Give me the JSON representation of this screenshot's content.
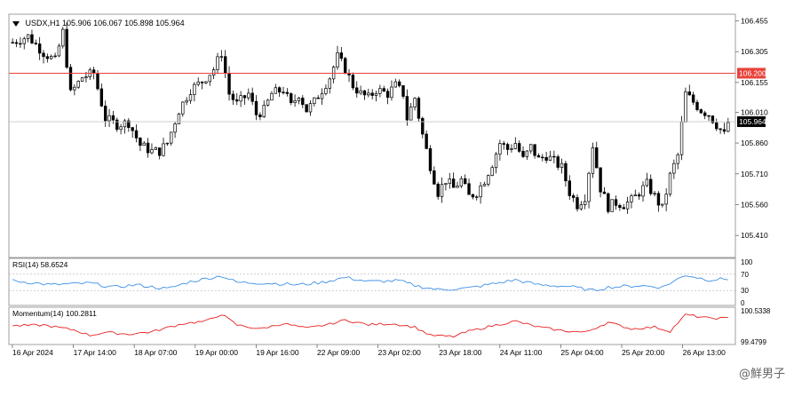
{
  "header": {
    "symbol": "USDX,H1",
    "ohlc": "105.906 106.067 105.898 105.964"
  },
  "price_axis": {
    "ticks": [
      "106.455",
      "106.305",
      "106.155",
      "106.010",
      "105.860",
      "105.710",
      "105.560",
      "105.410"
    ],
    "level_line_label": "106.200",
    "current_price_label": "105.964"
  },
  "rsi": {
    "label": "RSI(14) 58.6524",
    "ticks": [
      "100",
      "70",
      "30",
      "0"
    ]
  },
  "momentum": {
    "label": "Momentum(14) 100.2811",
    "ticks": [
      "100.5338",
      "99.4799"
    ]
  },
  "time_axis": {
    "labels": [
      "16 Apr 2024",
      "17 Apr 14:00",
      "18 Apr 07:00",
      "19 Apr 00:00",
      "19 Apr 16:00",
      "22 Apr 09:00",
      "23 Apr 02:00",
      "23 Apr 18:00",
      "24 Apr 11:00",
      "25 Apr 04:00",
      "25 Apr 20:00",
      "26 Apr 13:00"
    ]
  },
  "watermark": "@鮮男子",
  "colors": {
    "bull_candle": "#ffffff",
    "bear_candle": "#000000",
    "level_line": "#e8423a",
    "level_label_bg": "#e8423a",
    "current_label_bg": "#000000",
    "rsi_line": "#3d8fe8",
    "momentum_line": "#e82020"
  },
  "chart_data": [
    {
      "type": "candlestick",
      "title": "USDX,H1",
      "y_range": [
        105.32,
        106.47
      ],
      "horizontal_level": 106.2,
      "current_price": 105.964,
      "close_keypoints": [
        [
          0,
          106.35
        ],
        [
          4,
          106.38
        ],
        [
          8,
          106.3
        ],
        [
          11,
          106.26
        ],
        [
          13,
          106.4
        ],
        [
          15,
          106.1
        ],
        [
          18,
          106.18
        ],
        [
          21,
          106.2
        ],
        [
          24,
          105.98
        ],
        [
          27,
          105.95
        ],
        [
          30,
          105.96
        ],
        [
          33,
          105.85
        ],
        [
          36,
          105.82
        ],
        [
          38,
          105.82
        ],
        [
          40,
          105.86
        ],
        [
          43,
          106.02
        ],
        [
          46,
          106.12
        ],
        [
          49,
          106.16
        ],
        [
          52,
          106.22
        ],
        [
          54,
          106.3
        ],
        [
          56,
          106.1
        ],
        [
          58,
          106.05
        ],
        [
          61,
          106.1
        ],
        [
          63,
          106.0
        ],
        [
          65,
          106.02
        ],
        [
          67,
          106.1
        ],
        [
          70,
          106.12
        ],
        [
          72,
          106.04
        ],
        [
          74,
          106.1
        ],
        [
          76,
          106.02
        ],
        [
          78,
          106.06
        ],
        [
          80,
          106.12
        ],
        [
          82,
          106.18
        ],
        [
          84,
          106.28
        ],
        [
          86,
          106.22
        ],
        [
          88,
          106.14
        ],
        [
          90,
          106.1
        ],
        [
          92,
          106.08
        ],
        [
          94,
          106.12
        ],
        [
          97,
          106.1
        ],
        [
          99,
          106.14
        ],
        [
          101,
          106.1
        ],
        [
          102,
          105.98
        ],
        [
          104,
          106.08
        ],
        [
          106,
          105.9
        ],
        [
          108,
          105.75
        ],
        [
          110,
          105.62
        ],
        [
          112,
          105.68
        ],
        [
          114,
          105.64
        ],
        [
          116,
          105.68
        ],
        [
          118,
          105.6
        ],
        [
          120,
          105.62
        ],
        [
          122,
          105.68
        ],
        [
          124,
          105.76
        ],
        [
          126,
          105.86
        ],
        [
          128,
          105.83
        ],
        [
          130,
          105.86
        ],
        [
          132,
          105.78
        ],
        [
          134,
          105.84
        ],
        [
          136,
          105.78
        ],
        [
          138,
          105.8
        ],
        [
          140,
          105.77
        ],
        [
          142,
          105.74
        ],
        [
          144,
          105.62
        ],
        [
          146,
          105.56
        ],
        [
          148,
          105.6
        ],
        [
          150,
          105.85
        ],
        [
          152,
          105.64
        ],
        [
          154,
          105.55
        ],
        [
          156,
          105.57
        ],
        [
          158,
          105.56
        ],
        [
          160,
          105.58
        ],
        [
          162,
          105.62
        ],
        [
          164,
          105.66
        ],
        [
          166,
          105.6
        ],
        [
          168,
          105.54
        ],
        [
          170,
          105.7
        ],
        [
          172,
          105.8
        ],
        [
          174,
          106.1
        ],
        [
          176,
          106.06
        ],
        [
          178,
          106.02
        ],
        [
          180,
          106.0
        ],
        [
          182,
          105.95
        ],
        [
          184,
          105.9
        ],
        [
          185,
          105.96
        ]
      ],
      "x_labels": [
        "16 Apr 2024",
        "17 Apr 14:00",
        "18 Apr 07:00",
        "19 Apr 00:00",
        "19 Apr 16:00",
        "22 Apr 09:00",
        "23 Apr 02:00",
        "23 Apr 18:00",
        "24 Apr 11:00",
        "25 Apr 04:00",
        "25 Apr 20:00",
        "26 Apr 13:00"
      ],
      "y_ticks": [
        106.455,
        106.305,
        106.155,
        106.01,
        105.86,
        105.71,
        105.56,
        105.41
      ]
    },
    {
      "type": "line",
      "title": "RSI(14) 58.6524",
      "y_range": [
        0,
        100
      ],
      "levels": [
        70,
        30
      ],
      "last_value": 58.6524,
      "keypoints": [
        [
          0,
          54
        ],
        [
          10,
          44
        ],
        [
          20,
          48
        ],
        [
          26,
          38
        ],
        [
          32,
          44
        ],
        [
          40,
          34
        ],
        [
          46,
          52
        ],
        [
          54,
          66
        ],
        [
          58,
          50
        ],
        [
          66,
          48
        ],
        [
          74,
          44
        ],
        [
          80,
          50
        ],
        [
          86,
          62
        ],
        [
          92,
          52
        ],
        [
          100,
          54
        ],
        [
          104,
          42
        ],
        [
          110,
          32
        ],
        [
          118,
          36
        ],
        [
          124,
          46
        ],
        [
          130,
          56
        ],
        [
          136,
          44
        ],
        [
          144,
          40
        ],
        [
          150,
          30
        ],
        [
          154,
          38
        ],
        [
          162,
          42
        ],
        [
          168,
          38
        ],
        [
          174,
          68
        ],
        [
          180,
          56
        ],
        [
          185,
          58.6524
        ]
      ]
    },
    {
      "type": "line",
      "title": "Momentum(14) 100.2811",
      "y_range": [
        99.4799,
        100.5338
      ],
      "last_value": 100.2811,
      "keypoints": [
        [
          0,
          100.02
        ],
        [
          8,
          100.05
        ],
        [
          16,
          99.88
        ],
        [
          20,
          99.7
        ],
        [
          24,
          99.8
        ],
        [
          30,
          99.74
        ],
        [
          36,
          99.82
        ],
        [
          44,
          100.1
        ],
        [
          50,
          100.18
        ],
        [
          54,
          100.42
        ],
        [
          58,
          100.05
        ],
        [
          64,
          99.92
        ],
        [
          70,
          100.1
        ],
        [
          76,
          99.94
        ],
        [
          82,
          100.08
        ],
        [
          86,
          100.22
        ],
        [
          92,
          100.06
        ],
        [
          98,
          100.1
        ],
        [
          104,
          99.98
        ],
        [
          108,
          99.7
        ],
        [
          114,
          99.66
        ],
        [
          118,
          99.84
        ],
        [
          124,
          100.02
        ],
        [
          130,
          100.18
        ],
        [
          136,
          99.98
        ],
        [
          142,
          99.86
        ],
        [
          148,
          99.8
        ],
        [
          154,
          100.14
        ],
        [
          160,
          99.92
        ],
        [
          166,
          99.98
        ],
        [
          170,
          99.84
        ],
        [
          174,
          100.4
        ],
        [
          180,
          100.28
        ],
        [
          185,
          100.2811
        ]
      ]
    }
  ]
}
